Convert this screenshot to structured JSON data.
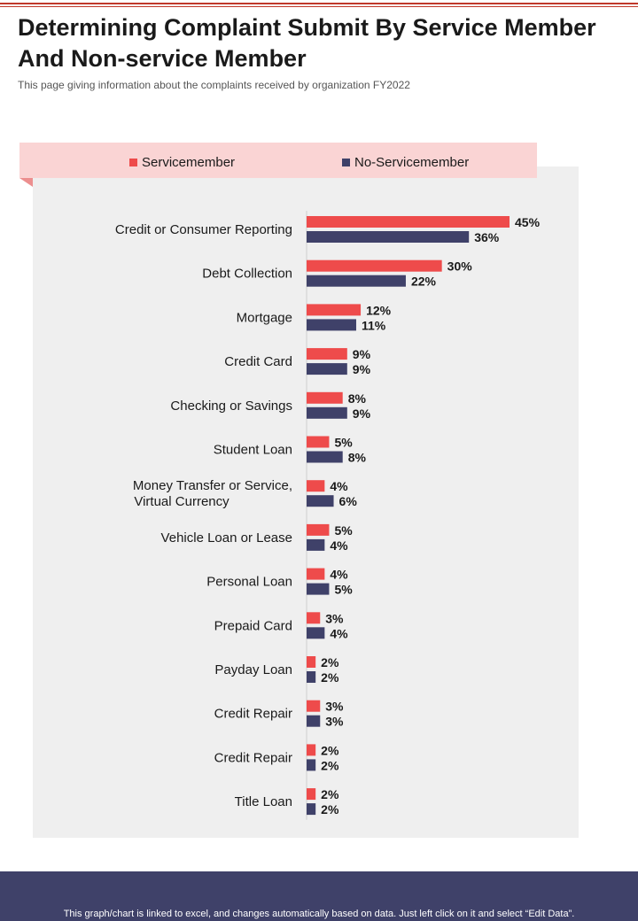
{
  "header": {
    "title": "Determining Complaint Submit By Service Member And Non-service Member",
    "subtitle": "This page giving information about the complaints received  by organization FY2022"
  },
  "footer": {
    "note": "This graph/chart is linked to excel,  and changes automatically based on data. Just left click on it and select “Edit Data”."
  },
  "colors": {
    "servicemember": "#ee4b4b",
    "non_servicemember": "#3f4169",
    "legend_background": "#fad4d4",
    "panel_background": "#efefef",
    "footer_background": "#3f4169",
    "accent_line": "#c0392b"
  },
  "chart_data": {
    "type": "bar",
    "orientation": "horizontal",
    "legend_position": "top",
    "grid": false,
    "value_suffix": "%",
    "xlim": [
      0,
      50
    ],
    "categories": [
      "Credit or Consumer Reporting",
      "Debt Collection",
      "Mortgage",
      "Credit Card",
      "Checking or Savings",
      "Student Loan",
      "Money Transfer or Service,Virtual Currency",
      "Vehicle Loan or Lease",
      "Personal Loan",
      "Prepaid Card",
      "Payday Loan",
      "Credit Repair",
      "Credit Repair",
      "Title Loan"
    ],
    "series": [
      {
        "name": "Servicemember",
        "values": [
          45,
          30,
          12,
          9,
          8,
          5,
          4,
          5,
          4,
          3,
          2,
          3,
          2,
          2
        ]
      },
      {
        "name": "No-Servicemember",
        "values": [
          36,
          22,
          11,
          9,
          9,
          8,
          6,
          4,
          5,
          4,
          2,
          3,
          2,
          2
        ]
      }
    ]
  }
}
